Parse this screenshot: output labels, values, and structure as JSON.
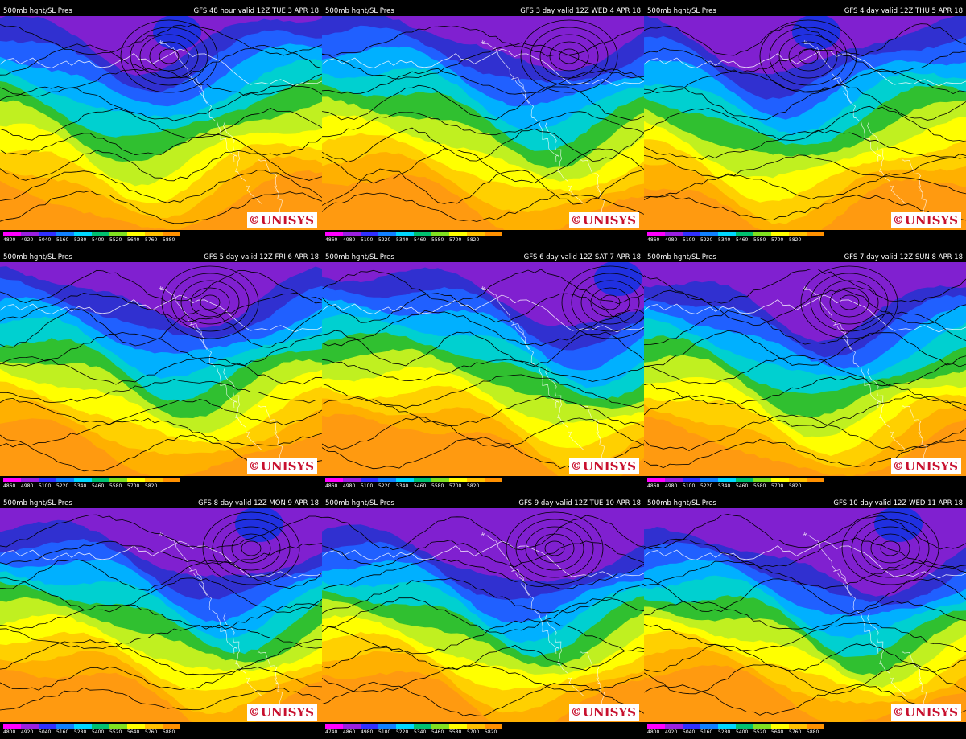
{
  "panels": [
    {
      "left": "500mb hght/SL Pres",
      "right": "GFS 48 hour valid 12Z TUE  3 APR 18",
      "scale": [
        "4800",
        "4920",
        "5040",
        "5160",
        "5280",
        "5400",
        "5520",
        "5640",
        "5760",
        "5880"
      ],
      "lows": [
        [
          "0.12",
          "0.85"
        ]
      ],
      "highs": []
    },
    {
      "left": "500mb hght/SL Pres",
      "right": "GFS 3 day valid 12Z WED  4 APR 18",
      "scale": [
        "4860",
        "4980",
        "5100",
        "5220",
        "5340",
        "5460",
        "5580",
        "5700",
        "5820"
      ]
    },
    {
      "left": "500mb hght/SL Pres",
      "right": "GFS 4 day valid 12Z THU  5 APR 18",
      "scale": [
        "4860",
        "4980",
        "5100",
        "5220",
        "5340",
        "5460",
        "5580",
        "5700",
        "5820"
      ]
    },
    {
      "left": "500mb hght/SL Pres",
      "right": "GFS 5 day valid 12Z FRI  6 APR 18",
      "scale": [
        "4860",
        "4980",
        "5100",
        "5220",
        "5340",
        "5460",
        "5580",
        "5700",
        "5820"
      ]
    },
    {
      "left": "500mb hght/SL Pres",
      "right": "GFS 6 day valid 12Z SAT  7 APR 18",
      "scale": [
        "4860",
        "4980",
        "5100",
        "5220",
        "5340",
        "5460",
        "5580",
        "5700",
        "5820"
      ]
    },
    {
      "left": "500mb hght/SL Pres",
      "right": "GFS 7 day valid 12Z SUN  8 APR 18",
      "scale": [
        "4860",
        "4980",
        "5100",
        "5220",
        "5340",
        "5460",
        "5580",
        "5700",
        "5820"
      ]
    },
    {
      "left": "500mb hght/SL Pres",
      "right": "GFS 8 day valid 12Z MON  9 APR 18",
      "scale": [
        "4800",
        "4920",
        "5040",
        "5160",
        "5280",
        "5400",
        "5520",
        "5640",
        "5760",
        "5880"
      ]
    },
    {
      "left": "500mb hght/SL Pres",
      "right": "GFS 9 day valid 12Z TUE 10 APR 18",
      "scale": [
        "4740",
        "4860",
        "4980",
        "5100",
        "5220",
        "5340",
        "5460",
        "5580",
        "5700",
        "5820"
      ]
    },
    {
      "left": "500mb hght/SL Pres",
      "right": "GFS 10 day valid 12Z WED 11 APR 18",
      "scale": [
        "4800",
        "4920",
        "5040",
        "5160",
        "5280",
        "5400",
        "5520",
        "5640",
        "5760",
        "5880"
      ]
    }
  ],
  "logo_text": "UNISYS",
  "colors": {
    "scale": [
      "#ff00ff",
      "#9a20e0",
      "#3030ff",
      "#1080ff",
      "#00d8ff",
      "#00c070",
      "#80e020",
      "#ffff00",
      "#ffc000",
      "#ff9000"
    ],
    "ocean": "#ff9a10",
    "land_warm": "#f0a020"
  }
}
